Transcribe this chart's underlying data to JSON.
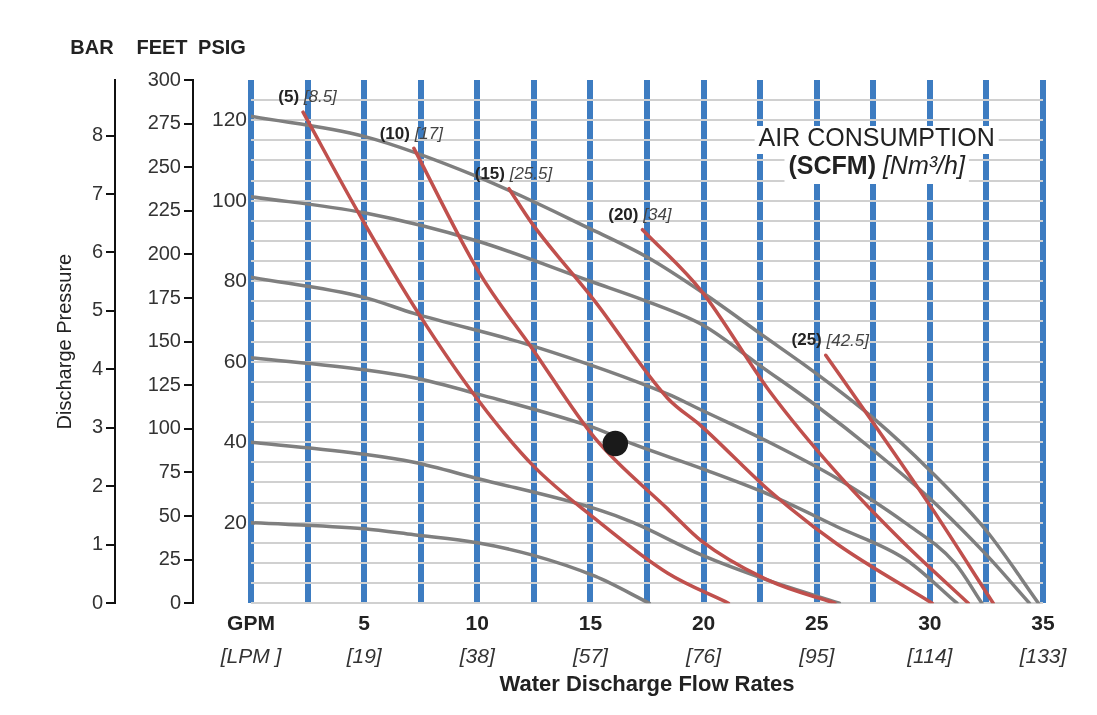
{
  "chart_data": {
    "type": "line",
    "xlabel": "Water Discharge Flow Rates",
    "ylabel": "PSIG",
    "y2label": "FEET",
    "y3label": "BAR",
    "annotations": [
      "Discharge Pressure",
      "AIR CONSUMPTION\n(SCFM) [Nm³/h]"
    ],
    "xlim": [
      0,
      35
    ],
    "xticks": [
      {
        "value": 0,
        "label": "GPM"
      },
      {
        "value": 2.5,
        "label": null
      },
      5,
      {
        "value": 7.5,
        "label": null
      },
      10,
      {
        "value": 12.5,
        "label": null
      },
      15,
      {
        "value": 17.5,
        "label": null
      },
      20,
      {
        "value": 22.5,
        "label": null
      },
      25,
      {
        "value": 27.5,
        "label": null
      },
      30,
      {
        "value": 32.5,
        "label": null
      },
      35
    ],
    "x2lim": [
      0,
      133
    ],
    "x2ticks": [
      {
        "value": 0,
        "label": "[LPM ]"
      },
      {
        "value": 19,
        "label": "[19]"
      },
      {
        "value": 38,
        "label": "[38]"
      },
      {
        "value": 57,
        "label": "[57]"
      },
      {
        "value": 76,
        "label": "[76]"
      },
      {
        "value": 95,
        "label": "[95]"
      },
      {
        "value": 114,
        "label": "[114]"
      },
      {
        "value": 133,
        "label": "[133]"
      }
    ],
    "ylim": [
      0,
      130
    ],
    "yticks": [
      {
        "value": 0,
        "label": null
      },
      {
        "value": 5,
        "label": null
      },
      {
        "value": 10,
        "label": null
      },
      {
        "value": 15,
        "label": null
      },
      20,
      {
        "value": 25,
        "label": null
      },
      {
        "value": 30,
        "label": null
      },
      {
        "value": 35,
        "label": null
      },
      40,
      {
        "value": 45,
        "label": null
      },
      {
        "value": 50,
        "label": null
      },
      {
        "value": 55,
        "label": null
      },
      60,
      {
        "value": 65,
        "label": null
      },
      {
        "value": 70,
        "label": null
      },
      {
        "value": 75,
        "label": null
      },
      80,
      {
        "value": 85,
        "label": null
      },
      {
        "value": 90,
        "label": null
      },
      {
        "value": 95,
        "label": null
      },
      100,
      {
        "value": 105,
        "label": null
      },
      {
        "value": 110,
        "label": null
      },
      {
        "value": 115,
        "label": null
      },
      120,
      {
        "value": 125,
        "label": null
      }
    ],
    "y2lim": [
      0,
      300
    ],
    "y2ticks": [
      0,
      25,
      50,
      75,
      100,
      125,
      150,
      175,
      200,
      225,
      250,
      275,
      300
    ],
    "y3lim": [
      0,
      8.95
    ],
    "y3ticks": [
      0,
      1,
      2,
      3,
      4,
      5,
      6,
      7,
      8
    ],
    "grid": true,
    "legend": false,
    "marker": "none",
    "series": [
      {
        "color": "#7f7f7f",
        "x": [
          0,
          5,
          10,
          15,
          17.5,
          20,
          22.5,
          25,
          27.5,
          30,
          32.5,
          34.8
        ],
        "values": [
          121,
          116,
          106,
          93,
          86,
          77,
          67,
          57,
          46,
          33,
          18,
          0
        ]
      },
      {
        "color": "#7f7f7f",
        "x": [
          0,
          5,
          10,
          15,
          17.5,
          20,
          22.5,
          25,
          27.5,
          30,
          32.5,
          34.4
        ],
        "values": [
          101,
          97,
          90,
          80,
          75,
          69,
          59,
          49,
          38,
          26,
          12,
          0
        ]
      },
      {
        "color": "#7f7f7f",
        "x": [
          0,
          5,
          7.2,
          12.4,
          18.4,
          19.9,
          22.9,
          25.9,
          28.9,
          31.1,
          32.3
        ],
        "values": [
          81,
          76,
          72,
          64,
          52,
          48,
          40,
          31,
          20,
          10,
          0
        ]
      },
      {
        "color": "#7f7f7f",
        "x": [
          0,
          5,
          7.2,
          10,
          15.2,
          16.9,
          19.9,
          22.9,
          25.9,
          28.9,
          31.2
        ],
        "values": [
          61,
          58,
          56,
          52,
          43.5,
          39.5,
          33.5,
          27,
          19,
          11,
          0
        ]
      },
      {
        "color": "#7f7f7f",
        "x": [
          0,
          5,
          7.2,
          10,
          15.2,
          16.9,
          19.9,
          22.9,
          26
        ],
        "values": [
          40,
          37,
          35,
          31,
          23.5,
          20,
          12,
          5.6,
          0
        ]
      },
      {
        "color": "#7f7f7f",
        "x": [
          0,
          5,
          7.2,
          10,
          12.4,
          15.2,
          17.6
        ],
        "values": [
          20,
          18.5,
          17,
          15,
          12,
          6.7,
          0
        ]
      },
      {
        "name": "(5) [8.5]",
        "color": "#c0504d",
        "x": [
          2.3,
          4.9,
          7.4,
          10.1,
          12.5,
          15.2,
          18.4,
          21.1
        ],
        "values": [
          122,
          95.5,
          72,
          50,
          34,
          21,
          7.5,
          0
        ]
      },
      {
        "name": "(10) [17]",
        "color": "#c0504d",
        "x": [
          7.2,
          10.1,
          12.4,
          15.2,
          18.4,
          19.9,
          22.9,
          25.8
        ],
        "values": [
          113,
          82,
          63.5,
          41,
          23.5,
          15.5,
          5.6,
          0
        ]
      },
      {
        "name": "(15) [25.5]",
        "color": "#c0504d",
        "x": [
          11.4,
          12.4,
          15.2,
          18.4,
          19.9,
          22.9,
          25.9,
          30.1
        ],
        "values": [
          103,
          94.5,
          75,
          51,
          44,
          28,
          14.7,
          0
        ]
      },
      {
        "name": "(20) [34]",
        "color": "#c0504d",
        "x": [
          17.3,
          19.9,
          22.9,
          25.9,
          28.9,
          31.7
        ],
        "values": [
          92.8,
          77.6,
          52.8,
          32.3,
          14.7,
          0
        ]
      },
      {
        "name": "(25) [42.5]",
        "color": "#c0504d",
        "x": [
          25.4,
          27.4,
          30.1,
          32.8
        ],
        "values": [
          61.6,
          45.6,
          23.5,
          0
        ]
      },
      {
        "type": "scatter",
        "marker": "circle",
        "color": "#1a1a1a",
        "x": [
          16.1
        ],
        "values": [
          39.7
        ]
      }
    ]
  }
}
